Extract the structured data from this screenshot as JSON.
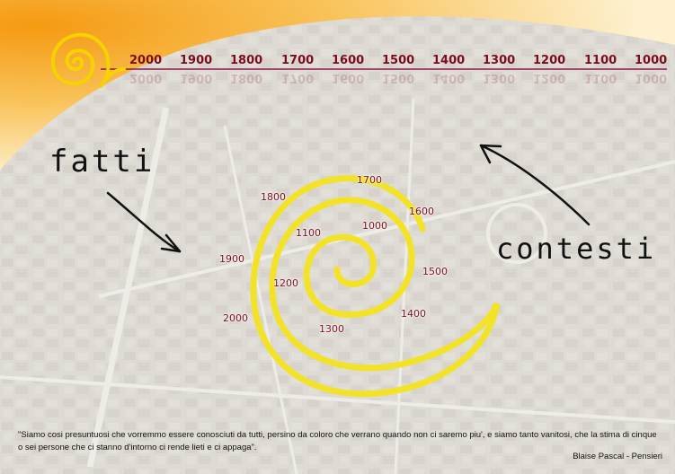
{
  "timeline": {
    "years": [
      "2000",
      "1900",
      "1800",
      "1700",
      "1600",
      "1500",
      "1400",
      "1300",
      "1200",
      "1100",
      "1000"
    ]
  },
  "spiral": {
    "labels": [
      "1000",
      "1100",
      "1200",
      "1300",
      "1400",
      "1500",
      "1600",
      "1700",
      "1800",
      "1900",
      "2000"
    ]
  },
  "handwriting": {
    "left": "fatti",
    "right": "contesti"
  },
  "quote": {
    "text": "\"Siamo cosi presuntuosi che vorremmo essere conosciuti da tutti, persino da coloro che verrano quando non ci saremo piu', e siamo tanto vanitosi, che la stima di cinque o sei persone che ci stanno d'intorno ci rende lieti e ci appaga\".",
    "author": "Blaise Pascal - Pensieri"
  },
  "colors": {
    "accent_orange": "#f7a21b",
    "spiral_yellow": "#f2e32a",
    "year_text": "#7a0e1c",
    "timeline_line": "#8a1a4a"
  }
}
